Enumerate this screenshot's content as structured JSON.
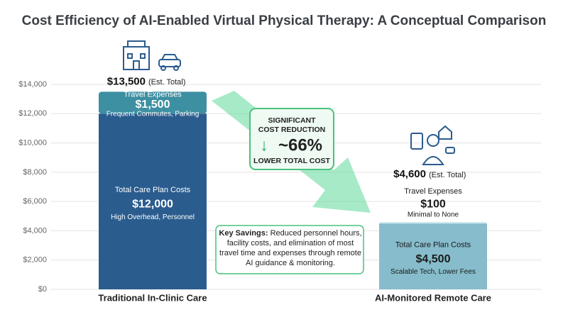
{
  "chart_data": {
    "type": "stacked_bar",
    "title": "Cost Efficiency of AI-Enabled Virtual Physical Therapy: A Conceptual Comparison",
    "categories": [
      "Traditional In-Clinic Care",
      "AI-Monitored Remote Care"
    ],
    "series": [
      {
        "name": "Total Care Plan Costs",
        "colors": [
          "#2b5c8e",
          "#86bccb"
        ],
        "values": [
          12000,
          4500
        ],
        "value_labels": [
          "$12,000",
          "$4,500"
        ],
        "notes": [
          "High Overhead, Personnel",
          "Scalable Tech, Lower Fees"
        ]
      },
      {
        "name": "Travel Expenses",
        "colors": [
          "#3d8fa2",
          "#cde9ef"
        ],
        "values": [
          1500,
          100
        ],
        "value_labels": [
          "$1,500",
          "$100"
        ],
        "notes": [
          "Frequent Commutes, Parking",
          "Minimal to None"
        ]
      }
    ],
    "totals": {
      "values": [
        13500,
        4600
      ],
      "value_labels": [
        "$13,500",
        "$4,600"
      ],
      "note": "(Est. Total)"
    },
    "ylim": [
      0,
      14000
    ],
    "yticks": [
      {
        "value": 0,
        "label": "$0"
      },
      {
        "value": 2000,
        "label": "$2,000"
      },
      {
        "value": 4000,
        "label": "$4,000"
      },
      {
        "value": 6000,
        "label": "$6,000"
      },
      {
        "value": 8000,
        "label": "$8,000"
      },
      {
        "value": 10000,
        "label": "$10,000"
      },
      {
        "value": 12000,
        "label": "$12,000"
      },
      {
        "value": 14000,
        "label": "$14,000"
      }
    ],
    "grid": true,
    "annotations": {
      "reduction": {
        "line1": "SIGNIFICANT",
        "line2": "COST REDUCTION",
        "value": "~66%",
        "line3": "LOWER TOTAL COST"
      },
      "key_savings": {
        "label": "Key Savings:",
        "text": "Reduced personnel hours, facility costs, and elimination of most travel time and expenses through remote AI guidance & monitoring."
      }
    }
  }
}
